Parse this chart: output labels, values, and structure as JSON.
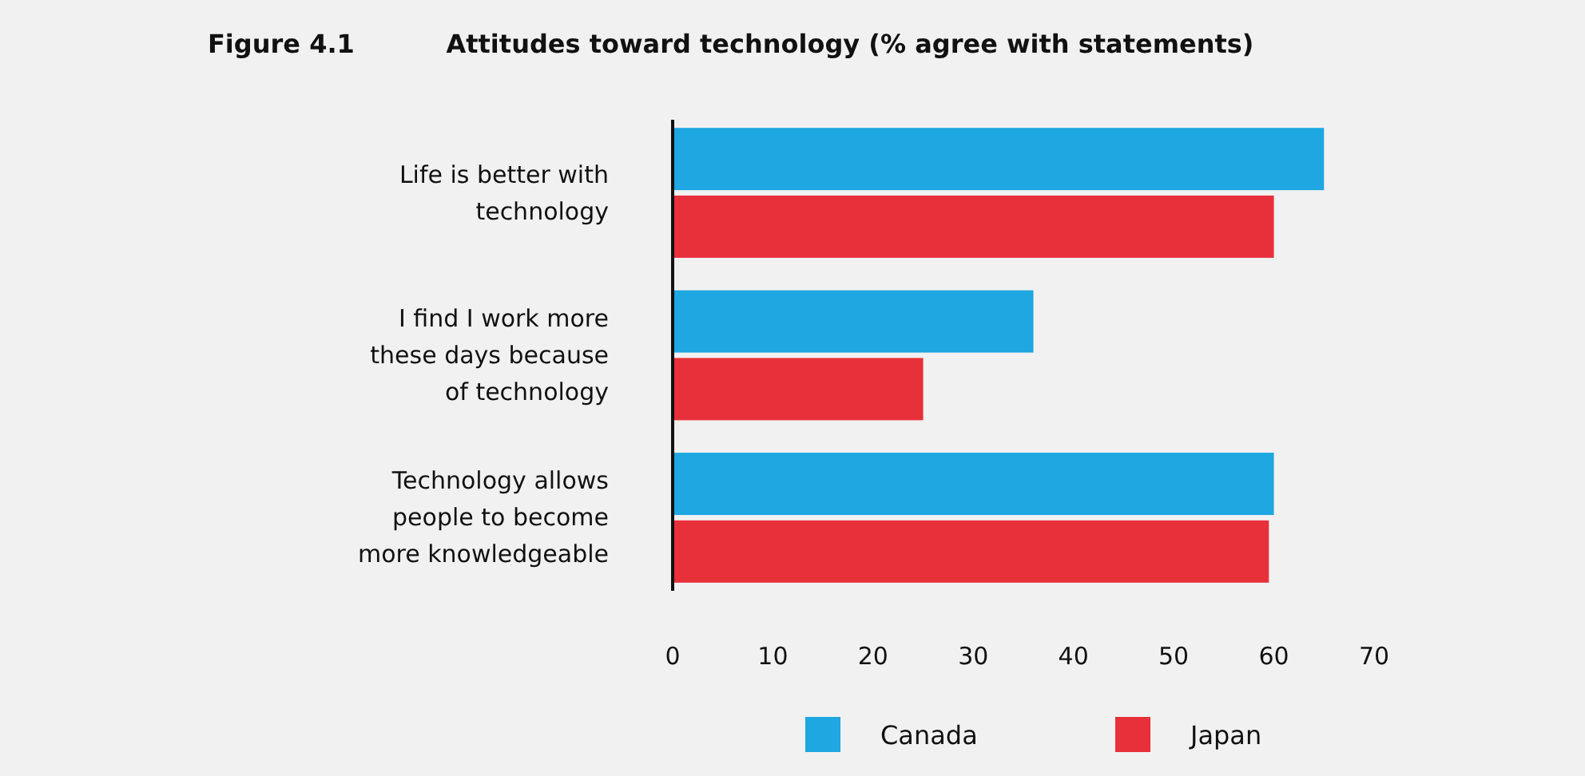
{
  "chart_data": {
    "type": "bar",
    "orientation": "horizontal",
    "title": "Attitudes toward technology (% agree with statements)",
    "annotations": [
      "Figure 4.1"
    ],
    "categories": [
      "Life is better with technology",
      "I find I work more these days because of technology",
      "Technology allows people to become more knowledgeable"
    ],
    "series": [
      {
        "name": "Canada",
        "color": "#1ea7e0",
        "values": [
          65,
          36,
          60
        ]
      },
      {
        "name": "Japan",
        "color": "#e8303a",
        "values": [
          60,
          25,
          59.5
        ]
      }
    ],
    "xlim": [
      0,
      70
    ],
    "xticks": [
      0,
      10,
      20,
      30,
      40,
      50,
      60,
      70
    ],
    "grid": false,
    "legend": "bottom"
  }
}
